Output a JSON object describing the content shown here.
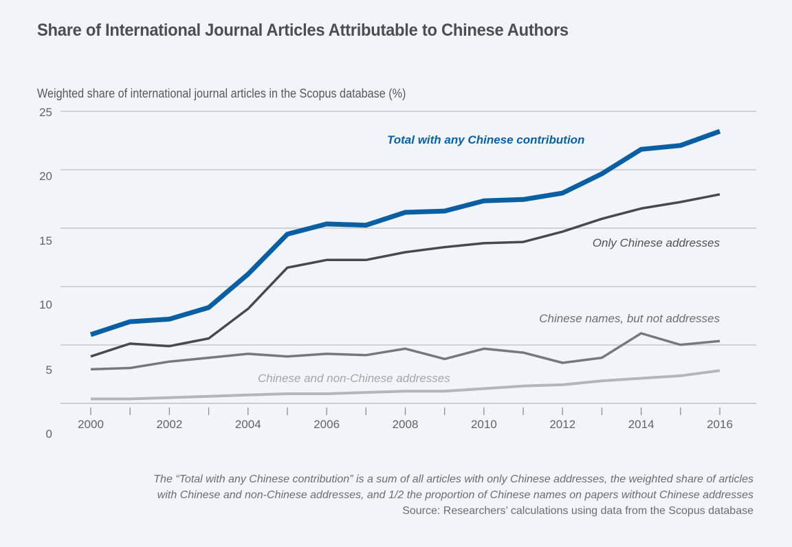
{
  "chart_data": {
    "type": "line",
    "title": "Share of International Journal Articles Attributable to Chinese Authors",
    "ylabel": "Weighted share of international journal articles in the Scopus database (%)",
    "xlabel": "",
    "x": [
      2000,
      2001,
      2002,
      2003,
      2004,
      2005,
      2006,
      2007,
      2008,
      2009,
      2010,
      2011,
      2012,
      2013,
      2014,
      2015,
      2016
    ],
    "x_tick_labels": [
      "2000",
      "2002",
      "2004",
      "2006",
      "2008",
      "2010",
      "2012",
      "2014",
      "2016"
    ],
    "y_tick_labels": [
      "25",
      "20",
      "15",
      "10",
      "5",
      "0"
    ],
    "ylim": [
      0,
      25
    ],
    "grid": true,
    "legend": "inline labels",
    "series": [
      {
        "name": "Total with any Chinese contribution",
        "color": "#0a5fa3",
        "values": [
          7.7,
          8.7,
          8.9,
          9.8,
          12.4,
          15.5,
          16.3,
          16.2,
          17.2,
          17.3,
          18.1,
          18.2,
          18.7,
          20.2,
          22.1,
          22.4,
          23.5
        ]
      },
      {
        "name": "Only Chinese addresses",
        "color": "#48484d",
        "values": [
          6.0,
          7.0,
          6.8,
          7.4,
          9.7,
          12.9,
          13.5,
          13.5,
          14.1,
          14.5,
          14.8,
          14.9,
          15.7,
          16.7,
          17.5,
          18.0,
          18.6
        ]
      },
      {
        "name": "Chinese names, but not addresses",
        "color": "#77787c",
        "values": [
          5.0,
          5.1,
          5.6,
          5.9,
          6.2,
          6.0,
          6.2,
          6.1,
          6.6,
          5.8,
          6.6,
          6.3,
          5.5,
          5.9,
          7.8,
          6.9,
          7.2
        ]
      },
      {
        "name": "Chinese and non-Chinese addresses",
        "color": "#b3b5b8",
        "values": [
          2.7,
          2.7,
          2.8,
          2.9,
          3.0,
          3.1,
          3.1,
          3.2,
          3.3,
          3.3,
          3.5,
          3.7,
          3.8,
          4.1,
          4.3,
          4.5,
          4.9
        ]
      }
    ],
    "annotations": [
      "Total with any Chinese contribution",
      "Only Chinese addresses",
      "Chinese names, but not addresses",
      "Chinese and non-Chinese addresses"
    ]
  },
  "footnote": {
    "line1": "The “Total with any Chinese contribution” is a sum of all articles with only Chinese addresses, the weighted share of articles",
    "line2": "with Chinese and non-Chinese addresses, and 1/2 the proportion of Chinese names on papers without Chinese addresses",
    "source": "Source: Researchers’ calculations using data from the Scopus database"
  }
}
